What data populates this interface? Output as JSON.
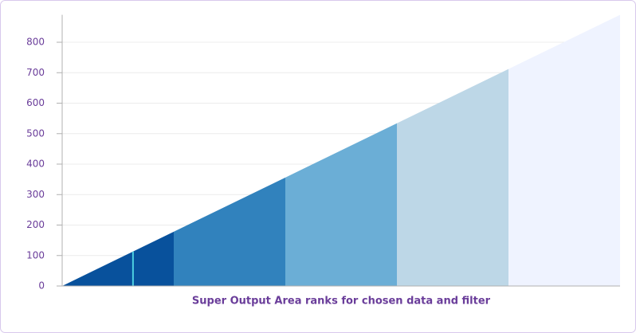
{
  "chart_data": {
    "type": "area",
    "xlabel": "Super Output Area ranks for chosen data and filter",
    "x": [
      0,
      178,
      356,
      534,
      712,
      890
    ],
    "values": [
      0,
      178,
      356,
      534,
      712,
      890
    ],
    "segment_colors": [
      "#08519c",
      "#3182bd",
      "#6baed6",
      "#bdd7e7",
      "#eff3ff"
    ],
    "marker": {
      "x": 113,
      "y": 113,
      "color": "#4dd0e1"
    },
    "xlim": [
      0,
      890
    ],
    "ylim": [
      0,
      890
    ],
    "yticks": [
      0,
      100,
      200,
      300,
      400,
      500,
      600,
      700,
      800
    ],
    "grid": true
  }
}
